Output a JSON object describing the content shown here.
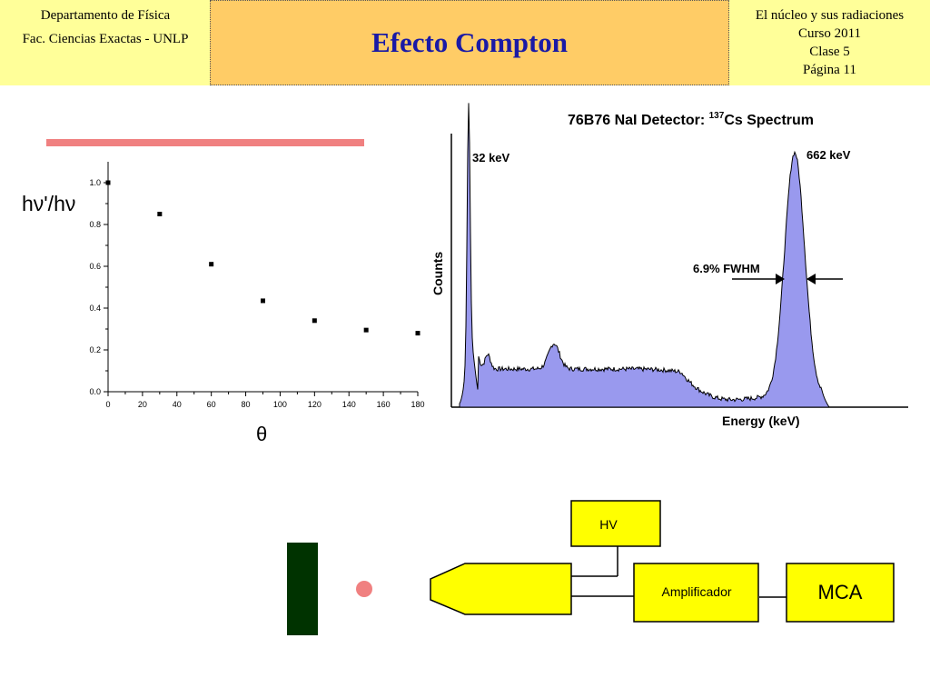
{
  "header": {
    "left_line1": "Departamento de Física",
    "left_line2": "Fac. Ciencias Exactas - UNLP",
    "title": "Efecto Compton",
    "right_line1": "El núcleo y sus radiaciones",
    "right_line2": "Curso 2011",
    "right_line3": "Clase 5",
    "right_line4": "Página 11"
  },
  "chart_data": [
    {
      "type": "scatter",
      "ylabel": "hν'/hν",
      "xlabel": "θ",
      "xlim": [
        0,
        180
      ],
      "ylim": [
        0,
        1.0
      ],
      "xticks": [
        "0",
        "20",
        "40",
        "60",
        "80",
        "100",
        "120",
        "140",
        "160",
        "180"
      ],
      "yticks": [
        "0.0",
        "0.2",
        "0.4",
        "0.6",
        "0.8",
        "1.0"
      ],
      "points": [
        [
          0,
          1.0
        ],
        [
          30,
          0.85
        ],
        [
          60,
          0.61
        ],
        [
          90,
          0.435
        ],
        [
          120,
          0.34
        ],
        [
          150,
          0.295
        ],
        [
          180,
          0.28
        ]
      ]
    },
    {
      "type": "area",
      "title": "76B76 NaI Detector: ¹³⁷Cs Spectrum",
      "title_main": "76B76 NaI Detector: ",
      "title_sup": "137",
      "title_tail": "Cs Spectrum",
      "xlabel": "Energy (keV)",
      "ylabel": "Counts",
      "annotations": {
        "peak_low": "32 keV",
        "peak_high": "662 keV",
        "fwhm": "6.9% FWHM"
      },
      "fill_color": "#9999ee"
    }
  ],
  "diagram": {
    "hv_label": "HV",
    "amp_label": "Amplificador",
    "mca_label": "MCA",
    "detector_color": "#ffff00",
    "source_color": "#f08080",
    "absorber_color": "#003300"
  },
  "colors": {
    "header_side": "#ffff99",
    "header_center": "#ffcc66",
    "title": "#1a1aa6",
    "pink_bar": "#f08080"
  }
}
